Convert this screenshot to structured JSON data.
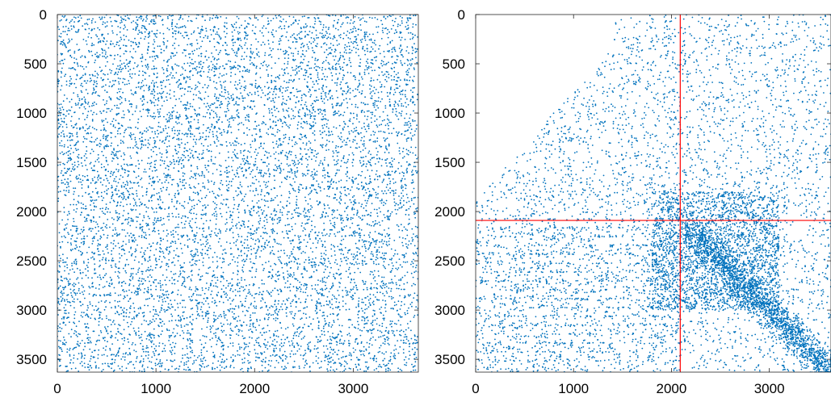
{
  "chart_data": [
    {
      "type": "scatter",
      "title": "",
      "xlabel": "",
      "ylabel": "",
      "xlim": [
        0,
        3660
      ],
      "ylim": [
        0,
        3630
      ],
      "y_inverted": true,
      "x_ticks": [
        0,
        1000,
        2000,
        3000
      ],
      "y_ticks": [
        0,
        500,
        1000,
        1500,
        2000,
        2500,
        3000,
        3500
      ],
      "marker_color": "#0072BD",
      "pattern": "uniform-random sparsity pattern",
      "num_points": 9000,
      "seed": 17,
      "grid": false,
      "legend": "none"
    },
    {
      "type": "scatter",
      "title": "",
      "xlabel": "",
      "ylabel": "",
      "xlim": [
        0,
        3630
      ],
      "ylim": [
        0,
        3630
      ],
      "y_inverted": true,
      "x_ticks": [
        0,
        1000,
        2000,
        3000
      ],
      "y_ticks": [
        0,
        500,
        1000,
        1500,
        2000,
        2500,
        3000,
        3500
      ],
      "marker_color": "#0072BD",
      "pattern": "reordered sparsity pattern concentrated toward lower-right with diagonal band",
      "num_points": 9000,
      "seed": 29,
      "split_x": 2090,
      "split_y": 2090,
      "split_line_color": "#FF0000",
      "grid": false,
      "legend": "none"
    }
  ]
}
